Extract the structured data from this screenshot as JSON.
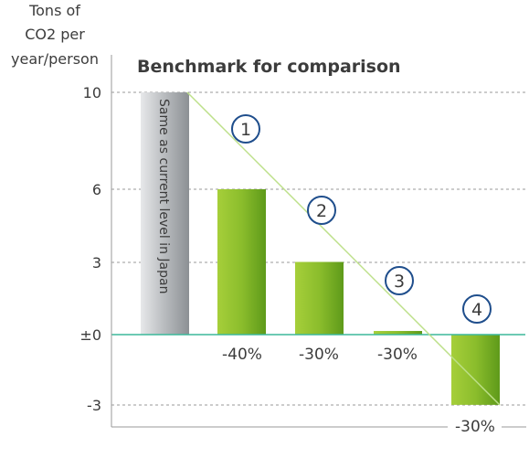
{
  "chart_data": {
    "type": "bar",
    "title": "Benchmark for comparison",
    "ylabel": [
      "Tons of",
      "CO2 per",
      "year/person"
    ],
    "ylim": [
      -3.9,
      10.0
    ],
    "yticks": [
      {
        "value": 10,
        "label": "10"
      },
      {
        "value": 6,
        "label": "6"
      },
      {
        "value": 3,
        "label": "3"
      },
      {
        "value": 0,
        "label": "±0"
      },
      {
        "value": -3,
        "label": "-3"
      }
    ],
    "categories": [
      "Same as current level in Japan",
      "1",
      "2",
      "3",
      "4"
    ],
    "values": [
      10,
      6,
      3,
      0.15,
      -2.9
    ],
    "step_labels": [
      "①",
      "②",
      "③",
      "④"
    ],
    "reduction_labels": [
      "-40%",
      "-30%",
      "-30%",
      "-30%"
    ],
    "benchmark_bar_label": "Same as current level in Japan",
    "grid": "dashed",
    "colors": {
      "benchmark_bar": "#b9bcbf",
      "green_bar_light": "#a6cf3a",
      "green_bar_dark": "#5e9a1a",
      "trend_line": "#bde08a",
      "zero_line": "#3cb89a",
      "circle": "#1f4e8c",
      "grid": "#9a9a9a",
      "text": "#3c3c3c"
    }
  }
}
